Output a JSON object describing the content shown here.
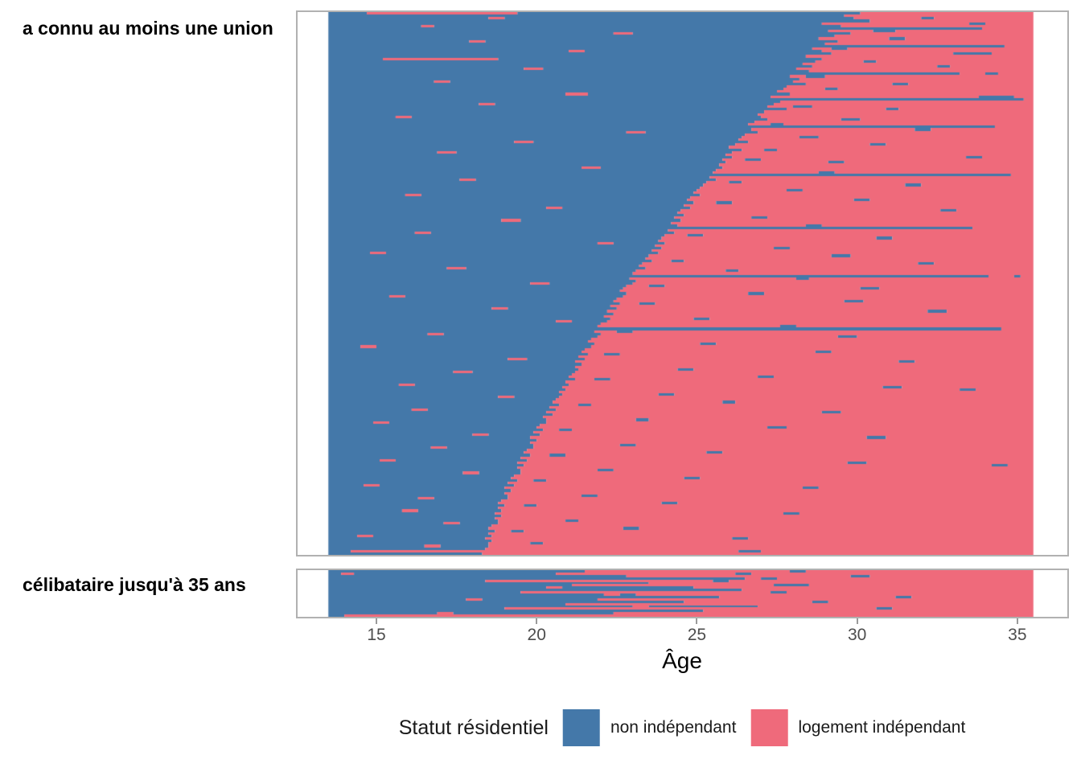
{
  "chart_data": {
    "type": "sequence-index",
    "description": "Sequence index plot of residential status trajectories by age, faceted by union history. Each horizontal line is one individual; segments alternate states starting with 'non indépendant' at age 13.5 and ending at age 35.5. Row arrays list the breakpoint ages where the state switches.",
    "xlabel": "Âge",
    "x_ticks": [
      15,
      20,
      25,
      30,
      35
    ],
    "x_domain": [
      12.54,
      36.56
    ],
    "data_range": [
      13.5,
      35.5
    ],
    "grid": false,
    "legend_position": "bottom",
    "legend": {
      "title": "Statut résidentiel",
      "items": [
        {
          "label": "non indépendant",
          "color": "#4478A9"
        },
        {
          "label": "logement indépendant",
          "color": "#EF6A7B"
        }
      ]
    },
    "row_encoding": "breakpoints-alternating-states-starting-non-independant",
    "facets": [
      {
        "label": "a connu au moins une union",
        "rows": [
          [
            14.7,
            19.4,
            30.1
          ],
          [
            29.6
          ],
          [
            18.5,
            19.0,
            29.9,
            32.0,
            32.4
          ],
          [
            30.4
          ],
          [
            28.9,
            33.5,
            34.0
          ],
          [
            16.4,
            16.8,
            29.5
          ],
          [
            33.9
          ],
          [
            29.1,
            30.5,
            31.2
          ],
          [
            22.4,
            23.0,
            29.8
          ],
          [
            29.3
          ],
          [
            28.8,
            31.0,
            31.5
          ],
          [
            17.9,
            18.4,
            29.4
          ],
          [
            29.0
          ],
          [
            34.6
          ],
          [
            28.6,
            29.2,
            29.7
          ],
          [
            21.0,
            21.5,
            28.9
          ],
          [
            29.2,
            33.0,
            34.2
          ],
          [
            28.4
          ],
          [
            15.2,
            18.8,
            28.9
          ],
          [
            28.7,
            30.2,
            30.6
          ],
          [
            28.3
          ],
          [
            28.6,
            32.5,
            32.9
          ],
          [
            19.6,
            20.2,
            28.1
          ],
          [
            28.5
          ],
          [
            33.2,
            34.0,
            34.4
          ],
          [
            27.9,
            28.4,
            29.0
          ],
          [
            28.2
          ],
          [
            16.8,
            17.3,
            28.0
          ],
          [
            28.4,
            31.1,
            31.6
          ],
          [
            27.8
          ],
          [
            27.7,
            29.0,
            29.4
          ],
          [
            27.5
          ],
          [
            20.9,
            21.6,
            27.9
          ],
          [
            27.3,
            33.8,
            34.9
          ],
          [
            35.2
          ],
          [
            27.6
          ],
          [
            18.2,
            18.7,
            27.4
          ],
          [
            27.2,
            28.0,
            28.6
          ],
          [
            27.8,
            30.9,
            31.3
          ],
          [
            27.1
          ],
          [
            26.9
          ],
          [
            15.6,
            16.1,
            27.0
          ],
          [
            27.2,
            29.5,
            30.1
          ],
          [
            26.8
          ],
          [
            26.6,
            27.3,
            27.7
          ],
          [
            34.3
          ],
          [
            26.7,
            31.8,
            32.3
          ],
          [
            22.8,
            23.4,
            26.9
          ],
          [
            26.5
          ],
          [
            26.4,
            28.2,
            28.8
          ],
          [
            26.3
          ],
          [
            19.3,
            19.9,
            26.6
          ],
          [
            26.2,
            30.4,
            30.9
          ],
          [
            26.0
          ],
          [
            26.4,
            27.1,
            27.5
          ],
          [
            16.9,
            17.5,
            26.1
          ],
          [
            25.9
          ],
          [
            26.1,
            33.4,
            33.9
          ],
          [
            25.8,
            26.5,
            27.0
          ],
          [
            25.9,
            29.1,
            29.6
          ],
          [
            25.7
          ],
          [
            21.4,
            22.0,
            25.8
          ],
          [
            25.6
          ],
          [
            25.5,
            28.8,
            29.3
          ],
          [
            34.8
          ],
          [
            25.4
          ],
          [
            17.6,
            18.1,
            25.6
          ],
          [
            25.3,
            26.0,
            26.4
          ],
          [
            25.2,
            31.5,
            32.0
          ],
          [
            25.1
          ],
          [
            25.0,
            27.8,
            28.3
          ],
          [
            24.9
          ],
          [
            15.9,
            16.4,
            25.1
          ],
          [
            24.8
          ],
          [
            24.7,
            29.9,
            30.4
          ],
          [
            24.9,
            25.6,
            26.1
          ],
          [
            24.6
          ],
          [
            20.3,
            20.8,
            24.8
          ],
          [
            24.5,
            32.6,
            33.1
          ],
          [
            24.4
          ],
          [
            24.6
          ],
          [
            24.3,
            26.7,
            27.2
          ],
          [
            18.9,
            19.5,
            24.5
          ],
          [
            24.2
          ],
          [
            24.4,
            28.4,
            28.9
          ],
          [
            33.6
          ],
          [
            24.1
          ],
          [
            16.2,
            16.7,
            24.3
          ],
          [
            24.0,
            24.7,
            25.2
          ],
          [
            23.9,
            30.6,
            31.1
          ],
          [
            23.8
          ],
          [
            21.9,
            22.4,
            24.0
          ],
          [
            23.7
          ],
          [
            23.9,
            27.4,
            27.9
          ],
          [
            23.6
          ],
          [
            14.8,
            15.3,
            23.8
          ],
          [
            23.5,
            29.2,
            29.8
          ],
          [
            23.4
          ],
          [
            23.6,
            24.2,
            24.6
          ],
          [
            23.3,
            31.9,
            32.4
          ],
          [
            23.2
          ],
          [
            17.2,
            17.8,
            23.4
          ],
          [
            23.1,
            25.9,
            26.3
          ],
          [
            23.0
          ],
          [
            34.1,
            34.9,
            35.1
          ],
          [
            22.9,
            28.1,
            28.5
          ],
          [
            23.1
          ],
          [
            19.8,
            20.4,
            23.0
          ],
          [
            22.8,
            23.5,
            24.0
          ],
          [
            22.7,
            30.1,
            30.7
          ],
          [
            22.6
          ],
          [
            22.8,
            26.6,
            27.1
          ],
          [
            15.4,
            15.9,
            22.7
          ],
          [
            22.5
          ],
          [
            22.4,
            29.6,
            30.2
          ],
          [
            22.6,
            23.2,
            23.7
          ],
          [
            22.3
          ],
          [
            18.6,
            19.1,
            22.5
          ],
          [
            22.2,
            32.2,
            32.8
          ],
          [
            22.4
          ],
          [
            22.1
          ],
          [
            22.3,
            24.9,
            25.4
          ],
          [
            20.6,
            21.1,
            22.2
          ],
          [
            22.0
          ],
          [
            21.9,
            27.6,
            28.1
          ],
          [
            34.5
          ],
          [
            21.8,
            22.5,
            23.0
          ],
          [
            16.6,
            17.1,
            22.0
          ],
          [
            21.9,
            29.4,
            30.0
          ],
          [
            21.7
          ],
          [
            21.6
          ],
          [
            21.8,
            25.1,
            25.6
          ],
          [
            14.5,
            15.0,
            21.7
          ],
          [
            21.5
          ],
          [
            21.4,
            28.7,
            29.2
          ],
          [
            21.6,
            22.1,
            22.6
          ],
          [
            21.3
          ],
          [
            19.1,
            19.7,
            21.5
          ],
          [
            21.2,
            31.3,
            31.8
          ],
          [
            21.4
          ],
          [
            21.2
          ],
          [
            21.3,
            24.4,
            24.9
          ],
          [
            17.4,
            18.0,
            21.2
          ],
          [
            21.1
          ],
          [
            21.0,
            26.9,
            27.4
          ],
          [
            21.2,
            21.8,
            22.3
          ],
          [
            20.9
          ],
          [
            15.7,
            16.2,
            21.0
          ],
          [
            20.8,
            30.8,
            31.4
          ],
          [
            20.9,
            33.2,
            33.7
          ],
          [
            20.7
          ],
          [
            20.8,
            23.8,
            24.3
          ],
          [
            18.8,
            19.3,
            20.7
          ],
          [
            20.6
          ],
          [
            20.5,
            25.8,
            26.2
          ],
          [
            20.7,
            21.3,
            21.7
          ],
          [
            20.4
          ],
          [
            16.1,
            16.6,
            20.6
          ],
          [
            20.3,
            28.9,
            29.5
          ],
          [
            20.5
          ],
          [
            20.2
          ],
          [
            20.3,
            23.1,
            23.5
          ],
          [
            14.9,
            15.4,
            20.3
          ],
          [
            20.1
          ],
          [
            20.0,
            27.2,
            27.8
          ],
          [
            20.2,
            20.7,
            21.1
          ],
          [
            19.9
          ],
          [
            18.0,
            18.5,
            20.1
          ],
          [
            19.8,
            30.3,
            30.9
          ],
          [
            20.0
          ],
          [
            19.8
          ],
          [
            19.9,
            22.6,
            23.1
          ],
          [
            16.7,
            17.2,
            19.9
          ],
          [
            19.7
          ],
          [
            19.6,
            25.3,
            25.8
          ],
          [
            19.8,
            20.4,
            20.9
          ],
          [
            19.5
          ],
          [
            15.1,
            15.6,
            19.7
          ],
          [
            19.4,
            29.7,
            30.3
          ],
          [
            19.6,
            34.2,
            34.7
          ],
          [
            19.4
          ],
          [
            19.5,
            21.9,
            22.4
          ],
          [
            17.7,
            18.2,
            19.5
          ],
          [
            19.3
          ],
          [
            19.2,
            24.6,
            25.1
          ],
          [
            19.4,
            19.9,
            20.3
          ],
          [
            19.1
          ],
          [
            14.6,
            15.1,
            19.3
          ],
          [
            19.0,
            28.3,
            28.8
          ],
          [
            19.2
          ],
          [
            19.0
          ],
          [
            19.1,
            21.4,
            21.9
          ],
          [
            16.3,
            16.8,
            19.1
          ],
          [
            18.9
          ],
          [
            18.8,
            23.9,
            24.4
          ],
          [
            19.0,
            19.6,
            20.0
          ],
          [
            18.8
          ],
          [
            15.8,
            16.3,
            18.9
          ],
          [
            18.7,
            27.7,
            28.2
          ],
          [
            18.9
          ],
          [
            18.7
          ],
          [
            18.8,
            20.9,
            21.3
          ],
          [
            17.1,
            17.6,
            18.8
          ],
          [
            18.6
          ],
          [
            18.5,
            22.7,
            23.2
          ],
          [
            18.7,
            19.2,
            19.6
          ],
          [
            18.5
          ],
          [
            14.4,
            14.9,
            18.6
          ],
          [
            18.4,
            26.1,
            26.6
          ],
          [
            18.6
          ],
          [
            18.5,
            19.8,
            20.2
          ],
          [
            16.5,
            17.0,
            18.5
          ],
          [
            18.4
          ],
          [
            14.2,
            26.3,
            27.0
          ],
          [
            18.3
          ]
        ]
      },
      {
        "label": "célibataire jusqu'à 35 ans",
        "rows": [
          [
            21.5,
            27.9,
            28.4
          ],
          [
            13.9,
            14.3,
            20.6,
            26.2,
            26.7
          ],
          [
            22.8,
            29.8,
            30.4
          ],
          [
            26.5,
            27.0,
            27.5
          ],
          [
            18.4,
            25.5,
            26.0
          ],
          [
            23.5
          ],
          [
            21.1,
            27.4,
            28.5
          ],
          [
            20.3,
            20.8,
            24.9
          ],
          [
            26.4
          ],
          [
            19.5,
            27.3,
            27.8
          ],
          [
            22.1,
            22.6,
            23.1
          ],
          [
            25.7,
            31.2,
            31.7
          ],
          [
            17.8,
            18.3,
            21.9
          ],
          [
            24.6,
            28.6,
            29.1
          ],
          [
            20.9
          ],
          [
            23.0,
            23.5,
            26.9
          ],
          [
            19.0,
            30.6,
            31.1
          ],
          [
            25.2
          ],
          [
            16.9,
            17.4,
            22.4
          ],
          [
            14.0
          ]
        ]
      }
    ],
    "styles": {
      "panel_border": "#B1B1B1",
      "tick_color": "#9A9A9A",
      "tick_label_color": "#4D4D4D",
      "axis_label_color": "#000000",
      "background": "#FFFFFF"
    }
  }
}
